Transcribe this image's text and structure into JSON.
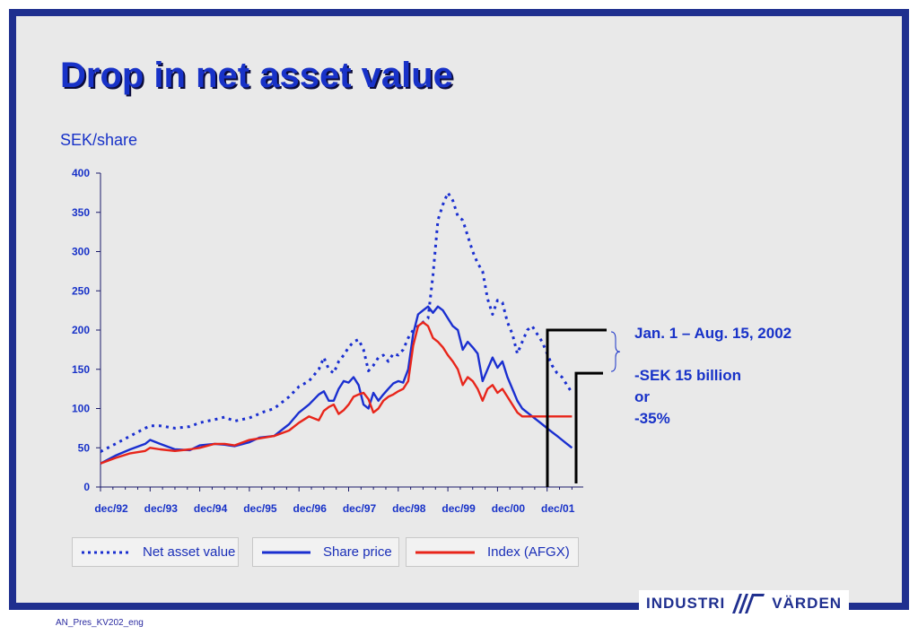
{
  "slide": {
    "title": "Drop in net asset value",
    "unit_label": "SEK/share",
    "footnote": "AN_Pres_KV202_eng",
    "logo_left": "INDUSTRI",
    "logo_right": "VÄRDEN",
    "logo_icon": "industrivarden-logo-icon"
  },
  "annotation": {
    "line1": "Jan. 1 – Aug. 15, 2002",
    "line2": "-SEK 15 billion",
    "line3": "or",
    "line4": "-35%"
  },
  "chart_data": {
    "type": "line",
    "ylim": [
      0,
      400
    ],
    "yticks": [
      0,
      50,
      100,
      150,
      200,
      250,
      300,
      350,
      400
    ],
    "xlim": [
      0,
      9.6
    ],
    "xtick_labels": [
      "dec/92",
      "dec/93",
      "dec/94",
      "dec/95",
      "dec/96",
      "dec/97",
      "dec/98",
      "dec/99",
      "dec/00",
      "dec/01"
    ],
    "legend_position": "bottom",
    "grid": false,
    "colors": {
      "nav": "#1a2fd0",
      "share": "#1a2fd0",
      "index": "#e8251a",
      "text": "#1832c8"
    },
    "series": [
      {
        "name": "Net asset value",
        "style": "dotted",
        "x": [
          0,
          0.3,
          0.6,
          0.9,
          1.0,
          1.2,
          1.5,
          1.8,
          2.0,
          2.3,
          2.5,
          2.7,
          3.0,
          3.3,
          3.5,
          3.8,
          4.0,
          4.2,
          4.4,
          4.5,
          4.6,
          4.7,
          4.8,
          4.9,
          5.0,
          5.1,
          5.2,
          5.3,
          5.4,
          5.5,
          5.6,
          5.7,
          5.8,
          5.9,
          6.0,
          6.1,
          6.2,
          6.3,
          6.4,
          6.5,
          6.6,
          6.7,
          6.8,
          6.9,
          7.0,
          7.1,
          7.2,
          7.3,
          7.4,
          7.5,
          7.6,
          7.7,
          7.8,
          7.9,
          8.0,
          8.1,
          8.2,
          8.3,
          8.4,
          8.5,
          8.6,
          8.7,
          8.8,
          8.9,
          9.0,
          9.1,
          9.2,
          9.3,
          9.4,
          9.5
        ],
        "values": [
          45,
          55,
          65,
          75,
          78,
          78,
          75,
          77,
          82,
          86,
          89,
          84,
          88,
          96,
          100,
          115,
          128,
          135,
          150,
          165,
          150,
          145,
          160,
          168,
          178,
          185,
          188,
          175,
          148,
          155,
          165,
          168,
          160,
          170,
          168,
          175,
          190,
          200,
          205,
          210,
          215,
          270,
          340,
          360,
          375,
          365,
          345,
          340,
          320,
          300,
          285,
          275,
          240,
          220,
          238,
          235,
          210,
          195,
          170,
          185,
          200,
          205,
          195,
          185,
          170,
          155,
          145,
          140,
          130,
          120
        ]
      },
      {
        "name": "Share price",
        "style": "solid",
        "x": [
          0,
          0.3,
          0.6,
          0.9,
          1.0,
          1.2,
          1.5,
          1.8,
          2.0,
          2.3,
          2.5,
          2.7,
          3.0,
          3.2,
          3.5,
          3.8,
          4.0,
          4.2,
          4.4,
          4.5,
          4.6,
          4.7,
          4.8,
          4.9,
          5.0,
          5.1,
          5.2,
          5.3,
          5.4,
          5.5,
          5.6,
          5.7,
          5.8,
          5.9,
          6.0,
          6.1,
          6.2,
          6.3,
          6.4,
          6.5,
          6.6,
          6.7,
          6.8,
          6.9,
          7.0,
          7.1,
          7.2,
          7.3,
          7.4,
          7.5,
          7.6,
          7.7,
          7.8,
          7.9,
          8.0,
          8.1,
          8.2,
          8.3,
          8.4,
          8.5,
          8.6,
          8.7,
          8.8,
          8.9,
          9.0,
          9.1,
          9.2,
          9.3,
          9.4,
          9.5
        ],
        "values": [
          30,
          40,
          48,
          55,
          60,
          55,
          48,
          47,
          53,
          55,
          54,
          52,
          57,
          63,
          65,
          80,
          95,
          105,
          118,
          122,
          110,
          110,
          125,
          135,
          133,
          140,
          130,
          105,
          100,
          120,
          110,
          118,
          125,
          132,
          135,
          133,
          150,
          195,
          220,
          225,
          230,
          222,
          230,
          225,
          215,
          205,
          200,
          175,
          185,
          178,
          170,
          135,
          150,
          165,
          152,
          160,
          140,
          125,
          110,
          100,
          95,
          90,
          85,
          80,
          75,
          70,
          65,
          60,
          55,
          50
        ]
      },
      {
        "name": "Index (AFGX)",
        "style": "solid",
        "x": [
          0,
          0.3,
          0.6,
          0.9,
          1.0,
          1.2,
          1.5,
          1.8,
          2.0,
          2.3,
          2.5,
          2.7,
          3.0,
          3.2,
          3.5,
          3.8,
          4.0,
          4.2,
          4.4,
          4.5,
          4.6,
          4.7,
          4.8,
          4.9,
          5.0,
          5.1,
          5.2,
          5.3,
          5.4,
          5.5,
          5.6,
          5.7,
          5.8,
          5.9,
          6.0,
          6.1,
          6.2,
          6.3,
          6.4,
          6.5,
          6.6,
          6.7,
          6.8,
          6.9,
          7.0,
          7.1,
          7.2,
          7.3,
          7.4,
          7.5,
          7.6,
          7.7,
          7.8,
          7.9,
          8.0,
          8.1,
          8.2,
          8.3,
          8.4,
          8.5,
          8.6,
          8.7,
          8.8,
          8.9,
          9.0,
          9.1,
          9.2,
          9.3,
          9.4,
          9.5
        ],
        "values": [
          30,
          37,
          43,
          46,
          50,
          48,
          46,
          48,
          50,
          55,
          55,
          53,
          60,
          62,
          65,
          72,
          82,
          90,
          85,
          97,
          102,
          105,
          93,
          98,
          105,
          115,
          118,
          120,
          112,
          95,
          100,
          110,
          115,
          118,
          122,
          125,
          135,
          180,
          205,
          210,
          205,
          190,
          185,
          178,
          168,
          160,
          150,
          130,
          140,
          135,
          125,
          110,
          125,
          130,
          120,
          125,
          115,
          105,
          95,
          90,
          90,
          90,
          90,
          90,
          90,
          90,
          90,
          90,
          90,
          90
        ]
      }
    ]
  }
}
